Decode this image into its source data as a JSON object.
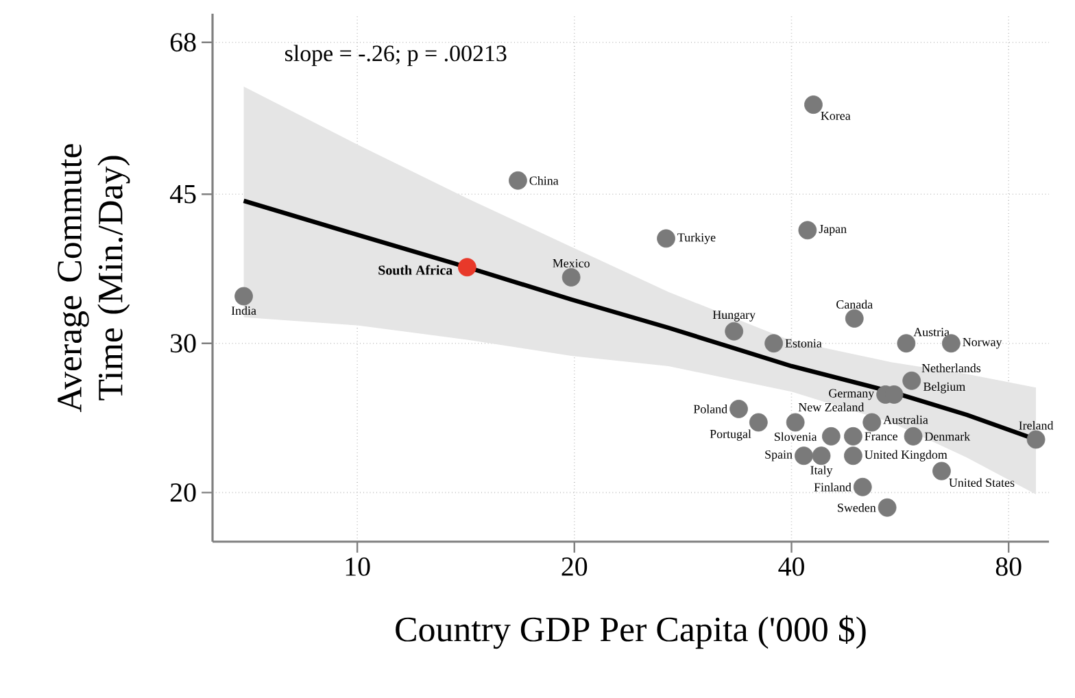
{
  "chart_data": {
    "type": "scatter",
    "xlabel": "Country GDP Per Capita ('000 $)",
    "ylabel": "Average Commute Time (Min./Day)",
    "log": "xy",
    "grid": true,
    "xlim": [
      6.3,
      91
    ],
    "ylim": [
      17.5,
      73.5
    ],
    "xticks": [
      10,
      20,
      40,
      80
    ],
    "yticks": [
      20,
      30,
      45,
      68
    ],
    "series": [
      {
        "type": "line",
        "color": "#000000",
        "x": [
          6.96,
          10,
          14.2,
          19.8,
          27,
          40,
          55,
          70,
          87.3
        ],
        "values": [
          44.2,
          40.3,
          36.9,
          33.8,
          31.3,
          28.2,
          26.3,
          24.7,
          23.1
        ],
        "lower": [
          32.2,
          31.5,
          30.3,
          29.0,
          28.2,
          26.3,
          24.2,
          22.0,
          19.9
        ],
        "upper": [
          60.3,
          51.5,
          44.5,
          39.0,
          34.5,
          30.2,
          28.5,
          27.6,
          26.6
        ]
      },
      {
        "type": "scatter",
        "marker": "circle",
        "color": "#7a7a7a",
        "x": [
          6.96,
          16.7,
          19.8,
          26.8,
          42.9,
          42.1,
          33.3,
          37.8,
          48.9,
          57.7,
          66.6,
          58.7,
          54.0,
          55.5,
          33.8,
          36.0,
          40.5,
          41.6,
          44.0,
          48.7,
          45.4,
          48.7,
          51.7,
          59.0,
          64.6,
          50.2,
          54.3,
          87.3
        ],
        "values": [
          34.1,
          46.7,
          35.9,
          39.9,
          57.4,
          40.8,
          31.0,
          30,
          32.1,
          30,
          30,
          27.1,
          26.1,
          26.1,
          25.1,
          24.2,
          24.2,
          22.1,
          22.1,
          22.1,
          23.3,
          23.3,
          24.2,
          23.3,
          21.2,
          20.3,
          19.2,
          23.1
        ]
      },
      {
        "type": "scatter",
        "marker": "circle",
        "name": "South Africa",
        "color": "#e8392a",
        "x": [
          14.2
        ],
        "values": [
          36.9
        ]
      }
    ],
    "annotations": [
      "slope = -.26; p = .00213",
      {
        "text": "India",
        "x": 6.96,
        "y": 34.1
      },
      {
        "text": "China",
        "x": 16.7,
        "y": 46.7
      },
      {
        "text": "Mexico",
        "x": 19.8,
        "y": 35.9
      },
      {
        "text": "Turkiye",
        "x": 26.8,
        "y": 39.9
      },
      {
        "text": "Korea",
        "x": 42.9,
        "y": 57.4
      },
      {
        "text": "Japan",
        "x": 42.1,
        "y": 40.8
      },
      {
        "text": "Hungary",
        "x": 33.3,
        "y": 31.0
      },
      {
        "text": "Estonia",
        "x": 37.8,
        "y": 30
      },
      {
        "text": "Canada",
        "x": 48.9,
        "y": 32.1
      },
      {
        "text": "Austria",
        "x": 57.7,
        "y": 30
      },
      {
        "text": "Norway",
        "x": 66.6,
        "y": 30
      },
      {
        "text": "Netherlands",
        "x": 58.7,
        "y": 27.1
      },
      {
        "text": "Germany",
        "x": 54.0,
        "y": 26.1
      },
      {
        "text": "Belgium",
        "x": 55.5,
        "y": 26.1
      },
      {
        "text": "Poland",
        "x": 33.8,
        "y": 25.1
      },
      {
        "text": "Portugal",
        "x": 36.0,
        "y": 24.2
      },
      {
        "text": "Slovenia",
        "x": 40.5,
        "y": 24.2
      },
      {
        "text": "Spain",
        "x": 41.6,
        "y": 22.1
      },
      {
        "text": "Italy",
        "x": 44.0,
        "y": 22.1
      },
      {
        "text": "United Kingdom",
        "x": 48.7,
        "y": 22.1
      },
      {
        "text": "New Zealand",
        "x": 45.4,
        "y": 23.3
      },
      {
        "text": "France",
        "x": 48.7,
        "y": 23.3
      },
      {
        "text": "Australia",
        "x": 51.7,
        "y": 24.2
      },
      {
        "text": "Denmark",
        "x": 59.0,
        "y": 23.3
      },
      {
        "text": "United States",
        "x": 64.6,
        "y": 21.2
      },
      {
        "text": "Finland",
        "x": 50.2,
        "y": 20.3
      },
      {
        "text": "Sweden",
        "x": 54.3,
        "y": 19.2
      },
      {
        "text": "Ireland",
        "x": 87.3,
        "y": 23.1
      }
    ]
  }
}
